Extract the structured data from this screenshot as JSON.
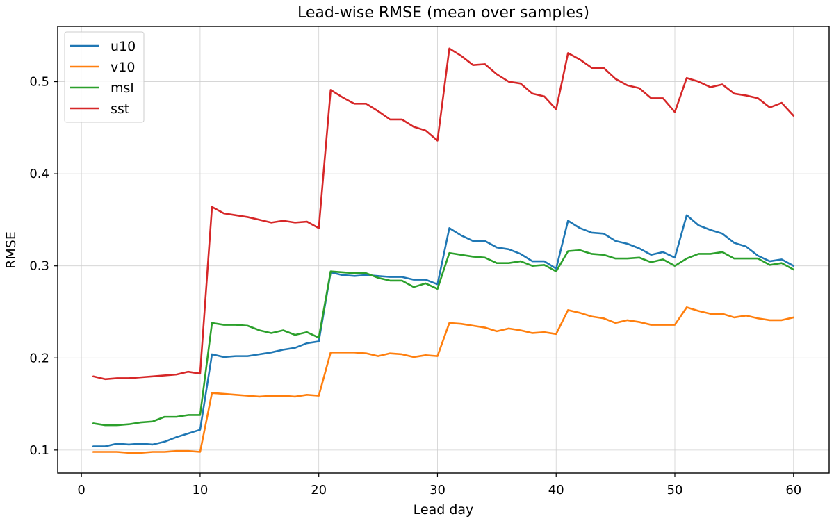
{
  "chart_data": {
    "type": "line",
    "title": "Lead-wise RMSE (mean over samples)",
    "xlabel": "Lead day",
    "ylabel": "RMSE",
    "xlim": [
      -2,
      63
    ],
    "ylim": [
      0.075,
      0.56
    ],
    "xticks": [
      0,
      10,
      20,
      30,
      40,
      50,
      60
    ],
    "yticks": [
      0.1,
      0.2,
      0.3,
      0.4,
      0.5
    ],
    "ytick_labels": [
      "0.1",
      "0.2",
      "0.3",
      "0.4",
      "0.5"
    ],
    "grid": true,
    "legend_position": "top-left",
    "x": [
      1,
      2,
      3,
      4,
      5,
      6,
      7,
      8,
      9,
      10,
      11,
      12,
      13,
      14,
      15,
      16,
      17,
      18,
      19,
      20,
      21,
      22,
      23,
      24,
      25,
      26,
      27,
      28,
      29,
      30,
      31,
      32,
      33,
      34,
      35,
      36,
      37,
      38,
      39,
      40,
      41,
      42,
      43,
      44,
      45,
      46,
      47,
      48,
      49,
      50,
      51,
      52,
      53,
      54,
      55,
      56,
      57,
      58,
      59,
      60
    ],
    "series": [
      {
        "name": "u10",
        "color": "#1f77b4",
        "values": [
          0.104,
          0.104,
          0.107,
          0.106,
          0.107,
          0.106,
          0.109,
          0.114,
          0.118,
          0.122,
          0.204,
          0.201,
          0.202,
          0.202,
          0.204,
          0.206,
          0.209,
          0.211,
          0.216,
          0.218,
          0.293,
          0.29,
          0.289,
          0.29,
          0.289,
          0.288,
          0.288,
          0.285,
          0.285,
          0.28,
          0.341,
          0.333,
          0.327,
          0.327,
          0.32,
          0.318,
          0.313,
          0.305,
          0.305,
          0.297,
          0.349,
          0.341,
          0.336,
          0.335,
          0.327,
          0.324,
          0.319,
          0.312,
          0.315,
          0.309,
          0.355,
          0.344,
          0.339,
          0.335,
          0.325,
          0.321,
          0.311,
          0.305,
          0.307,
          0.3
        ]
      },
      {
        "name": "v10",
        "color": "#ff7f0e",
        "values": [
          0.098,
          0.098,
          0.098,
          0.097,
          0.097,
          0.098,
          0.098,
          0.099,
          0.099,
          0.098,
          0.162,
          0.161,
          0.16,
          0.159,
          0.158,
          0.159,
          0.159,
          0.158,
          0.16,
          0.159,
          0.206,
          0.206,
          0.206,
          0.205,
          0.202,
          0.205,
          0.204,
          0.201,
          0.203,
          0.202,
          0.238,
          0.237,
          0.235,
          0.233,
          0.229,
          0.232,
          0.23,
          0.227,
          0.228,
          0.226,
          0.252,
          0.249,
          0.245,
          0.243,
          0.238,
          0.241,
          0.239,
          0.236,
          0.236,
          0.236,
          0.255,
          0.251,
          0.248,
          0.248,
          0.244,
          0.246,
          0.243,
          0.241,
          0.241,
          0.244
        ]
      },
      {
        "name": "msl",
        "color": "#2ca02c",
        "values": [
          0.129,
          0.127,
          0.127,
          0.128,
          0.13,
          0.131,
          0.136,
          0.136,
          0.138,
          0.138,
          0.238,
          0.236,
          0.236,
          0.235,
          0.23,
          0.227,
          0.23,
          0.225,
          0.228,
          0.222,
          0.294,
          0.293,
          0.292,
          0.292,
          0.287,
          0.284,
          0.284,
          0.277,
          0.281,
          0.275,
          0.314,
          0.312,
          0.31,
          0.309,
          0.303,
          0.303,
          0.305,
          0.3,
          0.301,
          0.294,
          0.316,
          0.317,
          0.313,
          0.312,
          0.308,
          0.308,
          0.309,
          0.304,
          0.307,
          0.3,
          0.308,
          0.313,
          0.313,
          0.315,
          0.308,
          0.308,
          0.308,
          0.301,
          0.303,
          0.296
        ]
      },
      {
        "name": "sst",
        "color": "#d62728",
        "values": [
          0.18,
          0.177,
          0.178,
          0.178,
          0.179,
          0.18,
          0.181,
          0.182,
          0.185,
          0.183,
          0.364,
          0.357,
          0.355,
          0.353,
          0.35,
          0.347,
          0.349,
          0.347,
          0.348,
          0.341,
          0.491,
          0.483,
          0.476,
          0.476,
          0.468,
          0.459,
          0.459,
          0.451,
          0.447,
          0.436,
          0.536,
          0.528,
          0.518,
          0.519,
          0.508,
          0.5,
          0.498,
          0.487,
          0.484,
          0.47,
          0.531,
          0.524,
          0.515,
          0.515,
          0.503,
          0.496,
          0.493,
          0.482,
          0.482,
          0.467,
          0.504,
          0.5,
          0.494,
          0.497,
          0.487,
          0.485,
          0.482,
          0.472,
          0.477,
          0.463
        ]
      }
    ]
  }
}
